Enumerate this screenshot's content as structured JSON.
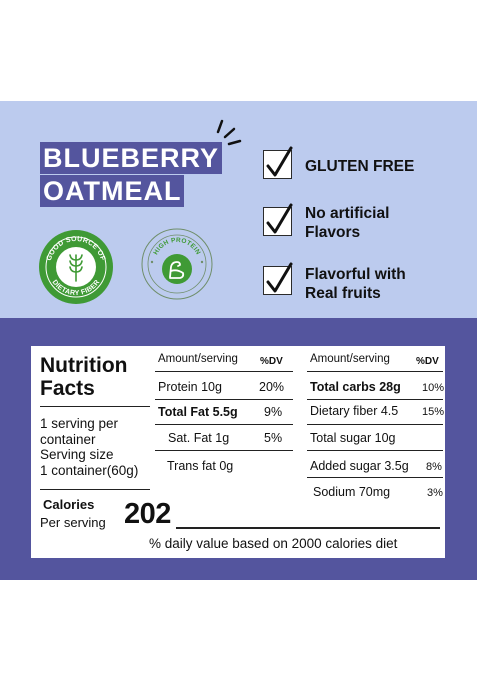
{
  "product": {
    "title_line1": "BLUEBERRY",
    "title_line2": "OATMEAL"
  },
  "badges": {
    "fiber_text": "GOOD SOURCE OF DIETARY FIBER",
    "protein_text": "HIGH PROTEIN"
  },
  "claims": [
    {
      "line1": "GLUTEN FREE",
      "line2": ""
    },
    {
      "line1": "No artificial",
      "line2": "Flavors"
    },
    {
      "line1": "Flavorful with",
      "line2": "Real fruits"
    }
  ],
  "nutrition": {
    "title_line1": "Nutrition",
    "title_line2": "Facts",
    "serving_lines": [
      "1 serving per",
      "container",
      "Serving size",
      "1 container(60g)"
    ],
    "calories_label": "Calories",
    "per_serving_label": "Per serving",
    "calories_value": "202",
    "col1_header": "Amount/serving",
    "col1_dv_header": "%DV",
    "col2_header": "Amount/serving",
    "col2_dv_header": "%DV",
    "col1_rows": [
      {
        "label": "Protein 10g",
        "dv": "20%"
      },
      {
        "label": "Total Fat 5.5g",
        "dv": "9%"
      },
      {
        "label": "Sat. Fat 1g",
        "dv": "5%"
      },
      {
        "label": "Trans fat 0g",
        "dv": ""
      }
    ],
    "col2_rows": [
      {
        "label": "Total carbs  28g",
        "dv": "10%"
      },
      {
        "label": "Dietary fiber 4.5",
        "dv": "15%"
      },
      {
        "label": "Total sugar 10g",
        "dv": ""
      },
      {
        "label": "Added sugar 3.5g",
        "dv": "8%"
      },
      {
        "label": "Sodium 70mg",
        "dv": "3%"
      }
    ],
    "footnote": "% daily value based on 2000 calories diet"
  },
  "colors": {
    "top_band": "#bccbee",
    "bottom_band": "#54559e",
    "badge_green": "#3f9a35"
  },
  "icons": [
    "checkmark-icon",
    "sparkle-lines-icon",
    "wheat-icon",
    "arm-muscle-icon"
  ]
}
